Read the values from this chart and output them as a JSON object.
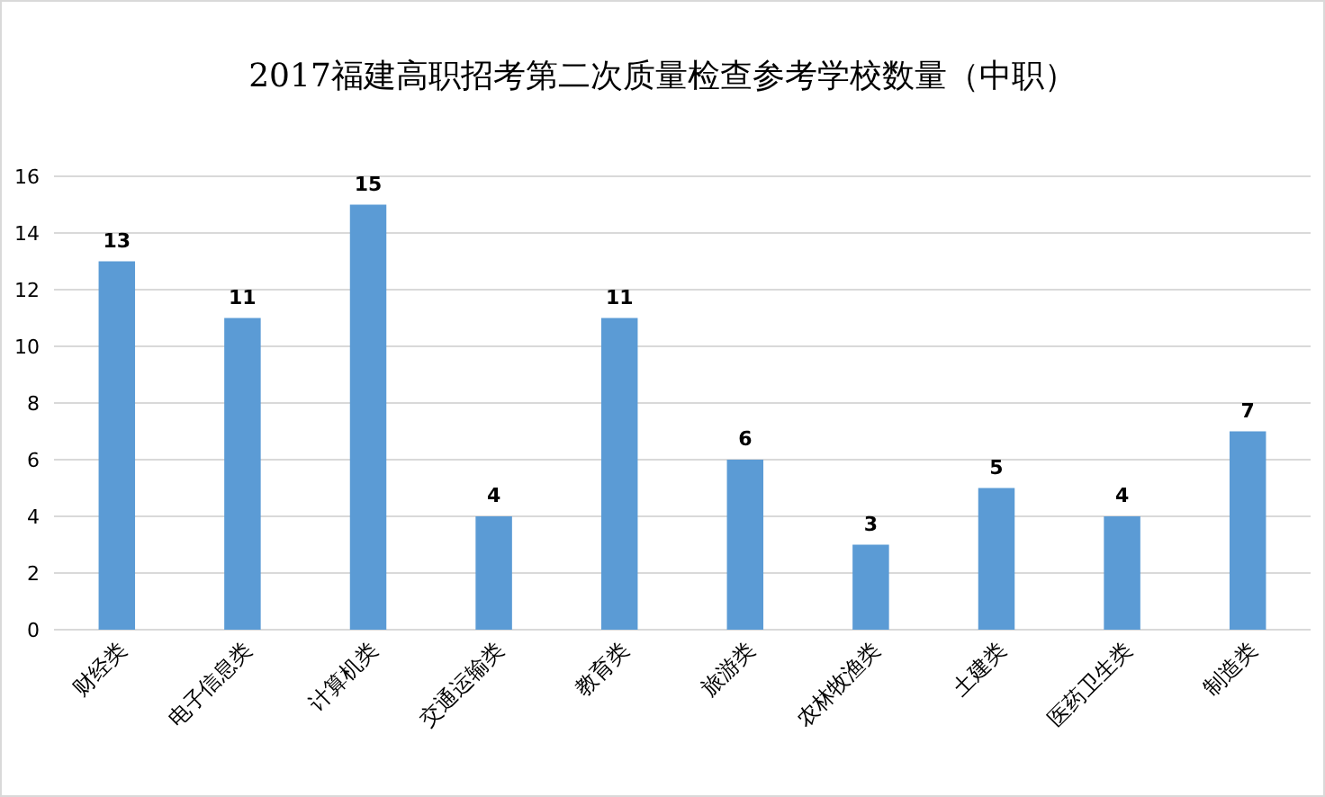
{
  "chart_data": {
    "type": "bar",
    "title": "2017福建高职招考第二次质量检查参考学校数量（中职）",
    "categories": [
      "财经类",
      "电子信息类",
      "计算机类",
      "交通运输类",
      "教育类",
      "旅游类",
      "农林牧渔类",
      "土建类",
      "医药卫生类",
      "制造类"
    ],
    "values": [
      13,
      11,
      15,
      4,
      11,
      6,
      3,
      5,
      4,
      7
    ],
    "color": "#5b9bd5",
    "ylim": [
      0,
      16
    ],
    "yticks": [
      0,
      2,
      4,
      6,
      8,
      10,
      12,
      14,
      16
    ],
    "grid": "y",
    "data_labels": true
  }
}
